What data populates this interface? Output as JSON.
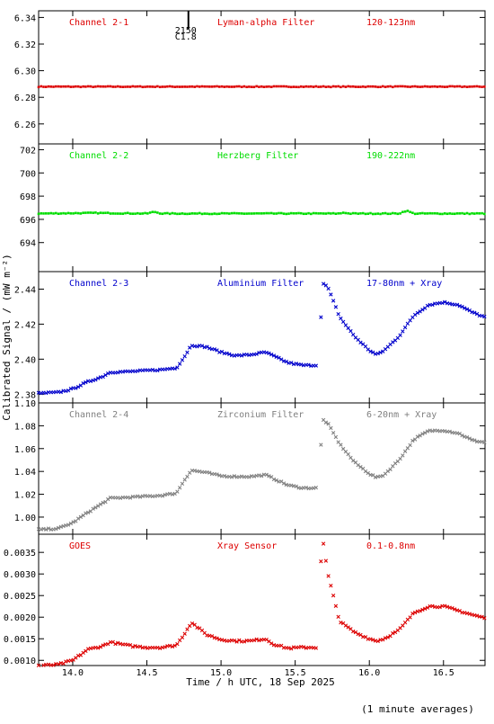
{
  "y_axis_label": "Calibrated Signal / (mW m⁻²)",
  "x_axis_label": "Time / h UTC, 18 Sep 2025",
  "footnote": "(1 minute averages)",
  "flare_marker": {
    "line1": "2150",
    "line2": "C1.8",
    "time": 14.78
  },
  "chart_data": [
    {
      "type": "scatter",
      "channel": "Channel 2-1",
      "filter": "Lyman-alpha Filter",
      "band": "120-123nm",
      "color": "#dd0000",
      "marker": "dot",
      "xlim": [
        13.77,
        16.78
      ],
      "ylim": [
        6.245,
        6.345
      ],
      "yticks": [
        "6.26",
        "6.28",
        "6.30",
        "6.32",
        "6.34"
      ],
      "anchors": [
        [
          13.77,
          6.288
        ],
        [
          16.78,
          6.288
        ]
      ],
      "noise": 0.0003
    },
    {
      "type": "scatter",
      "channel": "Channel 2-2",
      "filter": "Herzberg Filter",
      "band": "190-222nm",
      "color": "#00dd00",
      "marker": "dot",
      "xlim": [
        13.77,
        16.78
      ],
      "ylim": [
        691.5,
        702.5
      ],
      "yticks": [
        "694",
        "696",
        "698",
        "700",
        "702"
      ],
      "anchors": [
        [
          13.77,
          696.5
        ],
        [
          14.15,
          696.55
        ],
        [
          14.5,
          696.5
        ],
        [
          14.55,
          696.65
        ],
        [
          14.6,
          696.5
        ],
        [
          15.8,
          696.5
        ],
        [
          15.83,
          696.6
        ],
        [
          15.86,
          696.5
        ],
        [
          16.2,
          696.5
        ],
        [
          16.25,
          696.75
        ],
        [
          16.3,
          696.5
        ],
        [
          16.78,
          696.5
        ]
      ],
      "noise": 0.04
    },
    {
      "type": "scatter",
      "channel": "Channel 2-3",
      "filter": "Aluminium Filter",
      "band": "17-80nm + Xray",
      "color": "#0000cc",
      "marker": "cross",
      "xlim": [
        13.77,
        16.78
      ],
      "ylim": [
        2.375,
        2.45
      ],
      "yticks": [
        "2.38",
        "2.40",
        "2.42",
        "2.44"
      ],
      "anchors": [
        [
          13.77,
          2.3805
        ],
        [
          13.9,
          2.381
        ],
        [
          14.0,
          2.383
        ],
        [
          14.1,
          2.387
        ],
        [
          14.2,
          2.39
        ],
        [
          14.25,
          2.3925
        ],
        [
          14.4,
          2.393
        ],
        [
          14.6,
          2.394
        ],
        [
          14.7,
          2.395
        ],
        [
          14.75,
          2.401
        ],
        [
          14.8,
          2.408
        ],
        [
          14.9,
          2.407
        ],
        [
          15.0,
          2.404
        ],
        [
          15.1,
          2.402
        ],
        [
          15.2,
          2.4025
        ],
        [
          15.3,
          2.404
        ],
        [
          15.35,
          2.402
        ],
        [
          15.45,
          2.398
        ],
        [
          15.55,
          2.3965
        ],
        [
          15.65,
          2.3965
        ],
        [
          15.655,
          null
        ],
        [
          15.66,
          2.398
        ],
        [
          15.665,
          2.41
        ],
        [
          15.67,
          2.42
        ],
        [
          15.69,
          2.443
        ],
        [
          15.72,
          2.441
        ],
        [
          15.8,
          2.424
        ],
        [
          15.9,
          2.413
        ],
        [
          16.0,
          2.405
        ],
        [
          16.05,
          2.4025
        ],
        [
          16.1,
          2.405
        ],
        [
          16.2,
          2.413
        ],
        [
          16.3,
          2.425
        ],
        [
          16.4,
          2.431
        ],
        [
          16.5,
          2.4325
        ],
        [
          16.6,
          2.431
        ],
        [
          16.7,
          2.4265
        ],
        [
          16.78,
          2.424
        ]
      ],
      "noise": 0.0004
    },
    {
      "type": "scatter",
      "channel": "Channel 2-4",
      "filter": "Zirconium Filter",
      "band": "6-20nm + Xray",
      "color": "#808080",
      "marker": "cross",
      "xlim": [
        13.77,
        16.78
      ],
      "ylim": [
        0.985,
        1.1
      ],
      "yticks": [
        "1.00",
        "1.02",
        "1.04",
        "1.06",
        "1.08",
        "1.10"
      ],
      "anchors": [
        [
          13.77,
          0.989
        ],
        [
          13.9,
          0.99
        ],
        [
          14.0,
          0.995
        ],
        [
          14.1,
          1.004
        ],
        [
          14.2,
          1.012
        ],
        [
          14.25,
          1.0165
        ],
        [
          14.4,
          1.0175
        ],
        [
          14.6,
          1.019
        ],
        [
          14.7,
          1.021
        ],
        [
          14.75,
          1.032
        ],
        [
          14.8,
          1.041
        ],
        [
          14.9,
          1.039
        ],
        [
          15.0,
          1.036
        ],
        [
          15.1,
          1.0355
        ],
        [
          15.2,
          1.0355
        ],
        [
          15.3,
          1.037
        ],
        [
          15.35,
          1.034
        ],
        [
          15.45,
          1.028
        ],
        [
          15.55,
          1.0255
        ],
        [
          15.65,
          1.0255
        ],
        [
          15.655,
          null
        ],
        [
          15.66,
          1.028
        ],
        [
          15.665,
          1.045
        ],
        [
          15.67,
          1.058
        ],
        [
          15.69,
          1.085
        ],
        [
          15.72,
          1.082
        ],
        [
          15.8,
          1.064
        ],
        [
          15.9,
          1.048
        ],
        [
          16.0,
          1.038
        ],
        [
          16.05,
          1.0345
        ],
        [
          16.1,
          1.037
        ],
        [
          16.2,
          1.05
        ],
        [
          16.3,
          1.068
        ],
        [
          16.4,
          1.0755
        ],
        [
          16.5,
          1.076
        ],
        [
          16.6,
          1.0735
        ],
        [
          16.7,
          1.067
        ],
        [
          16.78,
          1.0655
        ]
      ],
      "noise": 0.0006
    },
    {
      "type": "scatter",
      "channel": "GOES",
      "filter": "Xray Sensor",
      "band": "0.1-0.8nm",
      "color": "#dd0000",
      "marker": "cross",
      "xlim": [
        13.77,
        16.78
      ],
      "ylim": [
        0.00088,
        0.00392
      ],
      "yticks": [
        "0.0010",
        "0.0015",
        "0.0020",
        "0.0025",
        "0.0030",
        "0.0035"
      ],
      "anchors": [
        [
          13.77,
          0.00088
        ],
        [
          13.9,
          0.0009
        ],
        [
          14.0,
          0.001
        ],
        [
          14.1,
          0.00125
        ],
        [
          14.2,
          0.00133
        ],
        [
          14.25,
          0.00142
        ],
        [
          14.4,
          0.00133
        ],
        [
          14.5,
          0.0013
        ],
        [
          14.6,
          0.0013
        ],
        [
          14.7,
          0.00135
        ],
        [
          14.75,
          0.0016
        ],
        [
          14.8,
          0.00188
        ],
        [
          14.9,
          0.0016
        ],
        [
          15.0,
          0.00148
        ],
        [
          15.1,
          0.00145
        ],
        [
          15.2,
          0.00145
        ],
        [
          15.3,
          0.0015
        ],
        [
          15.35,
          0.00138
        ],
        [
          15.45,
          0.00128
        ],
        [
          15.55,
          0.0013
        ],
        [
          15.65,
          0.0013
        ],
        [
          15.655,
          null
        ],
        [
          15.66,
          0.0027
        ],
        [
          15.67,
          0.0032
        ],
        [
          15.69,
          0.0037
        ],
        [
          15.72,
          0.003
        ],
        [
          15.8,
          0.0019
        ],
        [
          15.9,
          0.00165
        ],
        [
          16.0,
          0.0015
        ],
        [
          16.05,
          0.00145
        ],
        [
          16.1,
          0.0015
        ],
        [
          16.2,
          0.0017
        ],
        [
          16.3,
          0.0021
        ],
        [
          16.4,
          0.00225
        ],
        [
          16.5,
          0.00225
        ],
        [
          16.6,
          0.00215
        ],
        [
          16.7,
          0.00205
        ],
        [
          16.78,
          0.00198
        ]
      ],
      "noise": 2e-05
    }
  ],
  "xticks": [
    "14.0",
    "14.5",
    "15.0",
    "15.5",
    "16.0",
    "16.5"
  ],
  "xtick_values": [
    14.0,
    14.5,
    15.0,
    15.5,
    16.0,
    16.5
  ]
}
